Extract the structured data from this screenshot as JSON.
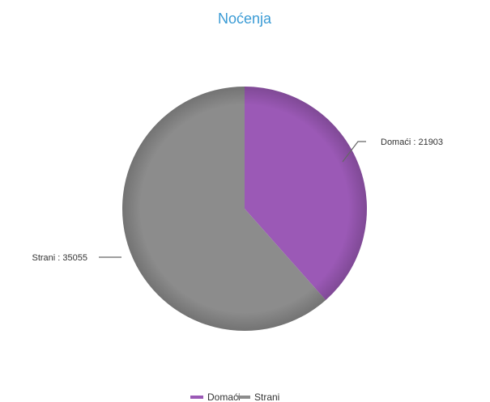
{
  "chart_data": {
    "type": "pie",
    "title": "Noćenja",
    "categories": [
      "Domaći",
      "Strani"
    ],
    "values": [
      21903,
      35055
    ],
    "colors": [
      "#9b59b6",
      "#8c8c8c"
    ],
    "data_labels": [
      "Domaći : 21903",
      "Strani : 35055"
    ],
    "legend": {
      "position": "bottom",
      "items": [
        "Domaći",
        "Strani"
      ]
    }
  }
}
